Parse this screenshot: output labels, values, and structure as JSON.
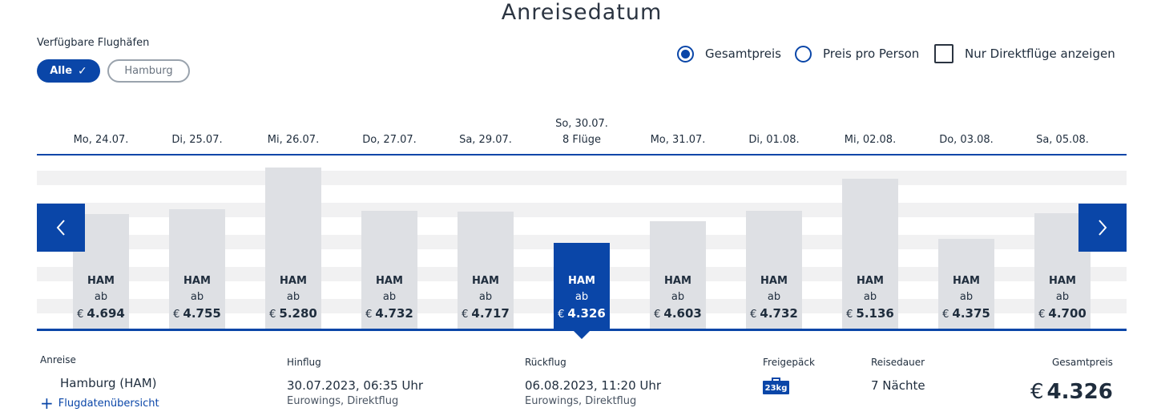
{
  "title": "Anreisedatum",
  "airports": {
    "label": "Verfügbare Flughäfen",
    "all": "Alle",
    "hamburg": "Hamburg"
  },
  "options": {
    "total_price": "Gesamtpreis",
    "per_person": "Preis pro Person",
    "direct_only": "Nur Direktflüge anzeigen"
  },
  "dates": [
    {
      "label": "Mo, 24.07.",
      "sub": "",
      "airport": "HAM",
      "ab": "ab",
      "currency": "€",
      "price": "4.694",
      "value": 4694
    },
    {
      "label": "Di, 25.07.",
      "sub": "",
      "airport": "HAM",
      "ab": "ab",
      "currency": "€",
      "price": "4.755",
      "value": 4755
    },
    {
      "label": "Mi, 26.07.",
      "sub": "",
      "airport": "HAM",
      "ab": "ab",
      "currency": "€",
      "price": "5.280",
      "value": 5280
    },
    {
      "label": "Do, 27.07.",
      "sub": "",
      "airport": "HAM",
      "ab": "ab",
      "currency": "€",
      "price": "4.732",
      "value": 4732
    },
    {
      "label": "Sa, 29.07.",
      "sub": "",
      "airport": "HAM",
      "ab": "ab",
      "currency": "€",
      "price": "4.717",
      "value": 4717
    },
    {
      "label": "So, 30.07.",
      "sub": "8 Flüge",
      "airport": "HAM",
      "ab": "ab",
      "currency": "€",
      "price": "4.326",
      "value": 4326,
      "selected": true
    },
    {
      "label": "Mo, 31.07.",
      "sub": "",
      "airport": "HAM",
      "ab": "ab",
      "currency": "€",
      "price": "4.603",
      "value": 4603
    },
    {
      "label": "Di, 01.08.",
      "sub": "",
      "airport": "HAM",
      "ab": "ab",
      "currency": "€",
      "price": "4.732",
      "value": 4732
    },
    {
      "label": "Mi, 02.08.",
      "sub": "",
      "airport": "HAM",
      "ab": "ab",
      "currency": "€",
      "price": "5.136",
      "value": 5136
    },
    {
      "label": "Do, 03.08.",
      "sub": "",
      "airport": "HAM",
      "ab": "ab",
      "currency": "€",
      "price": "4.375",
      "value": 4375
    },
    {
      "label": "Sa, 05.08.",
      "sub": "",
      "airport": "HAM",
      "ab": "ab",
      "currency": "€",
      "price": "4.700",
      "value": 4700
    }
  ],
  "details": {
    "anreise_label": "Anreise",
    "anreise_value": "Hamburg  (HAM)",
    "overview_link": "Flugdatenübersicht",
    "hinflug_label": "Hinflug",
    "hinflug_value": "30.07.2023, 06:35 Uhr",
    "hinflug_sub": "Eurowings, Direktflug",
    "rueckflug_label": "Rückflug",
    "rueckflug_value": "06.08.2023, 11:20 Uhr",
    "rueckflug_sub": "Eurowings, Direktflug",
    "baggage_label": "Freigepäck",
    "baggage_badge": "23kg",
    "duration_label": "Reisedauer",
    "duration_value": "7 Nächte",
    "total_label": "Gesamtpreis",
    "total_currency": "€",
    "total_value": "4.326"
  },
  "colors": {
    "accent": "#0a46a8",
    "bar": "#dee0e4"
  }
}
